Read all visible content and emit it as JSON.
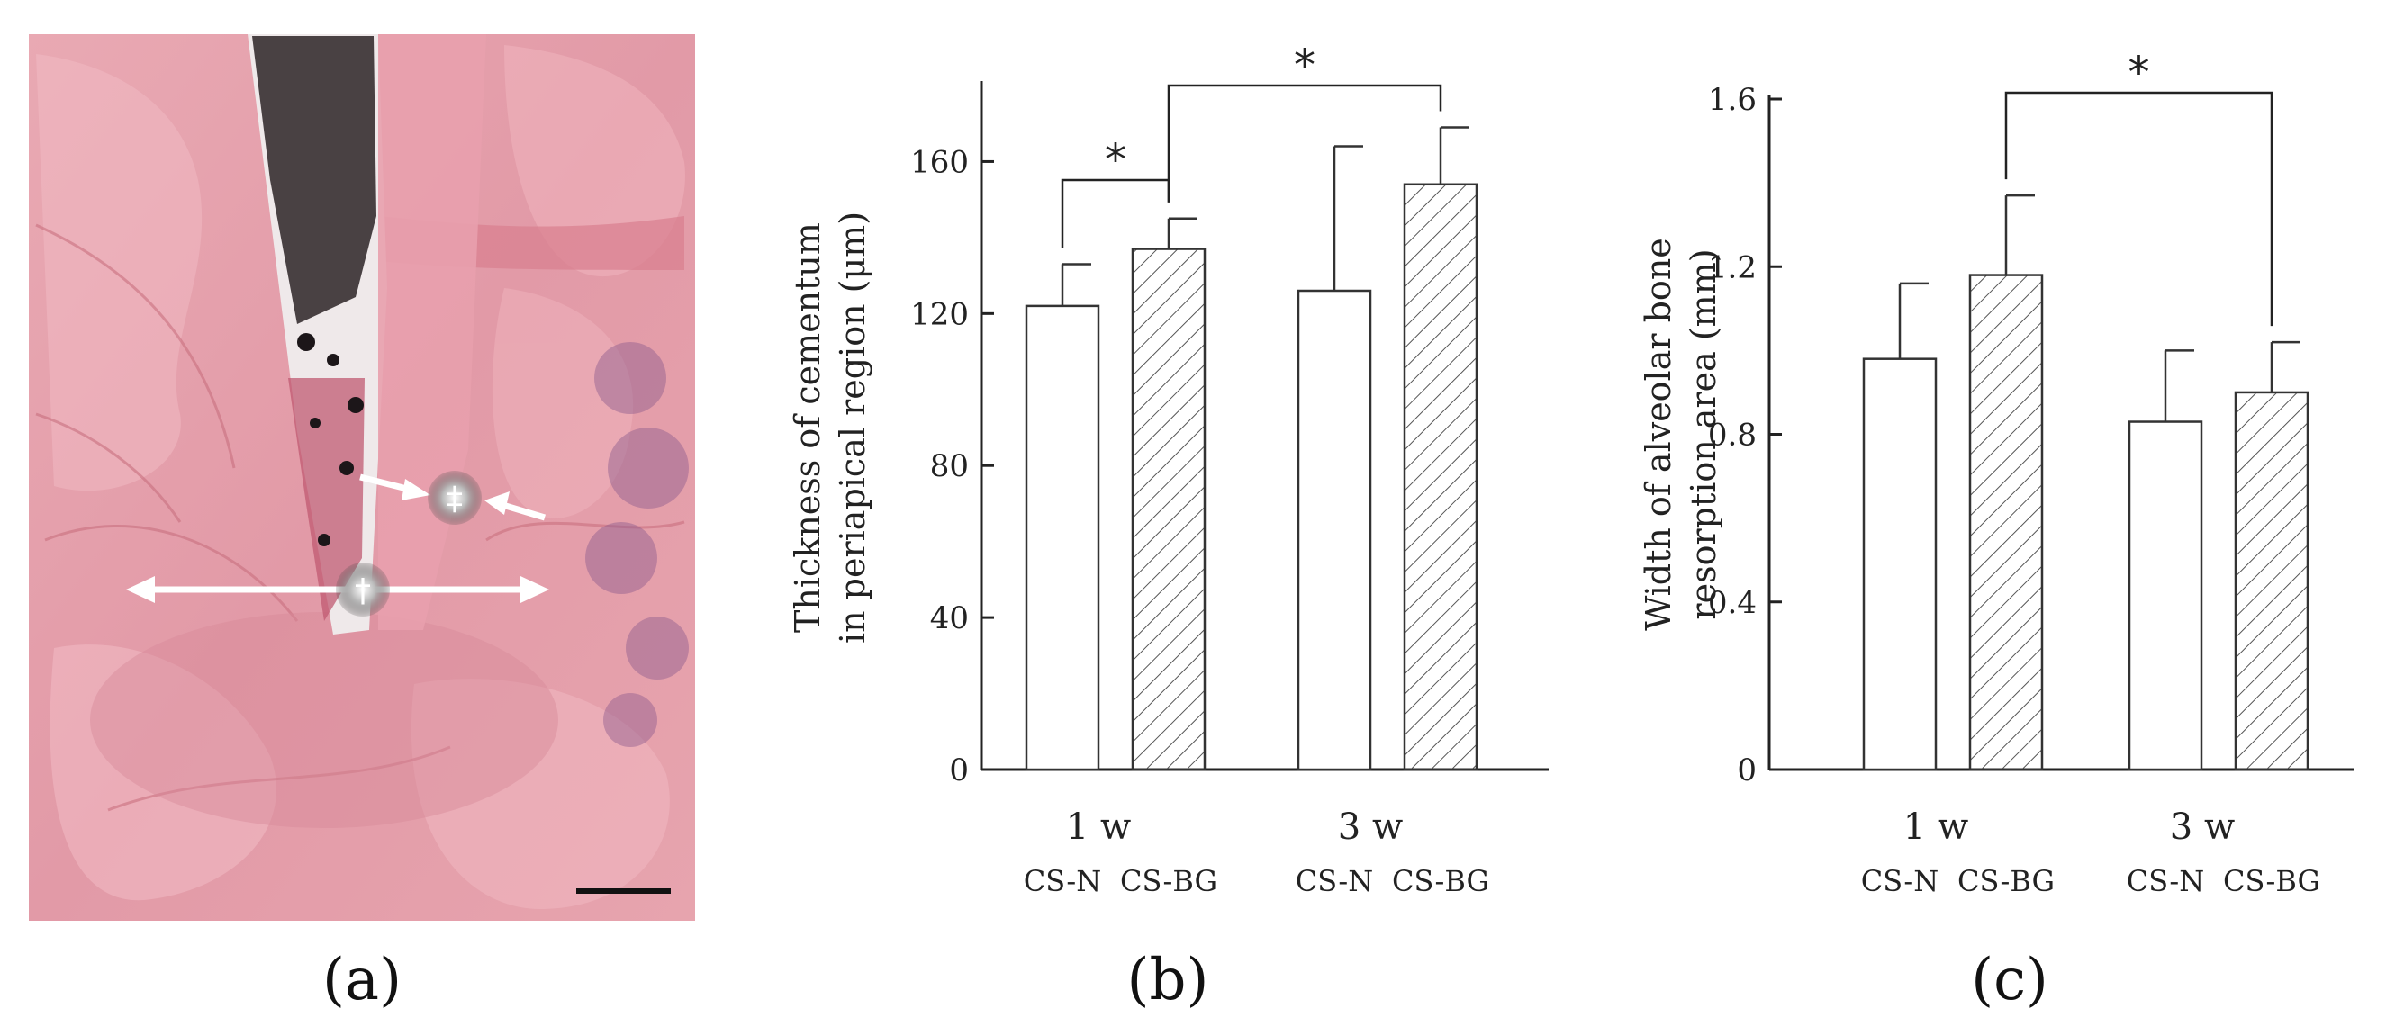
{
  "panels": [
    "(a)",
    "(b)",
    "(c)"
  ],
  "micrograph": {
    "markers": [
      "‡",
      "†"
    ]
  },
  "colors": {
    "tissue": "#e5a1ad",
    "bar_fill": "#ffffff",
    "bar_stroke": "#333333",
    "axis": "#222222"
  },
  "chart_data": [
    {
      "type": "bar",
      "xlabel": "",
      "ylabel_lines": [
        "Thickness of cementum",
        "in periapical region (μm)"
      ],
      "categories": [
        "1 w",
        "3 w"
      ],
      "bar_labels": [
        "CS-N",
        "CS-BG",
        "CS-N",
        "CS-BG"
      ],
      "ylim": [
        0,
        180
      ],
      "yticks": [
        0,
        40,
        80,
        120,
        160
      ],
      "series": [
        {
          "name": "CS-N",
          "pattern": "open",
          "values": [
            122,
            126
          ],
          "errors": [
            11,
            38
          ]
        },
        {
          "name": "CS-BG",
          "pattern": "hatched",
          "values": [
            137,
            154
          ],
          "errors": [
            8,
            15
          ]
        }
      ],
      "significance": [
        {
          "from": 0,
          "to": 1,
          "label": "*"
        },
        {
          "from": 1,
          "to": 3,
          "label": "*"
        }
      ],
      "grid": false
    },
    {
      "type": "bar",
      "xlabel": "",
      "ylabel_lines": [
        "Width of alveolar bone",
        "resorption area (mm)"
      ],
      "categories": [
        "1 w",
        "3 w"
      ],
      "bar_labels": [
        "CS-N",
        "CS-BG",
        "CS-N",
        "CS-BG"
      ],
      "ylim": [
        0,
        1.6
      ],
      "yticks": [
        "0",
        "0.4",
        "0.8",
        "1.2",
        "1.6"
      ],
      "series": [
        {
          "name": "CS-N",
          "pattern": "open",
          "values": [
            0.98,
            0.83
          ],
          "errors": [
            0.18,
            0.17
          ]
        },
        {
          "name": "CS-BG",
          "pattern": "hatched",
          "values": [
            1.18,
            0.9
          ],
          "errors": [
            0.19,
            0.12
          ]
        }
      ],
      "significance": [
        {
          "from": 1,
          "to": 3,
          "label": "*"
        }
      ],
      "grid": false
    }
  ]
}
